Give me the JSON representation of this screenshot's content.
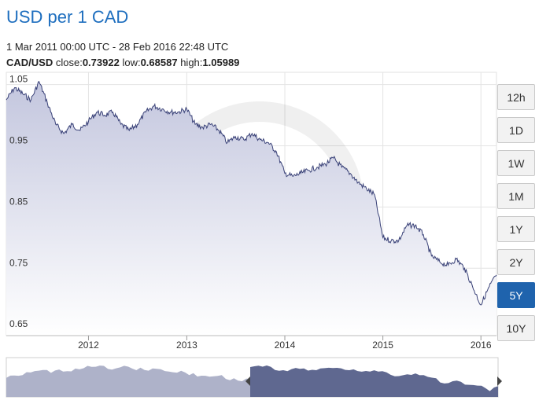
{
  "title": "USD per 1 CAD",
  "range_text": "1 Mar 2011 00:00 UTC - 28 Feb 2016 22:48 UTC",
  "stats": {
    "pair": "CAD/USD",
    "close_label": "close:",
    "close": "0.73922",
    "low_label": "low:",
    "low": "0.68587",
    "high_label": "high:",
    "high": "1.05989"
  },
  "buttons": [
    {
      "label": "12h",
      "active": false
    },
    {
      "label": "1D",
      "active": false
    },
    {
      "label": "1W",
      "active": false
    },
    {
      "label": "1M",
      "active": false
    },
    {
      "label": "1Y",
      "active": false
    },
    {
      "label": "2Y",
      "active": false
    },
    {
      "label": "5Y",
      "active": true
    },
    {
      "label": "10Y",
      "active": false
    }
  ],
  "colors": {
    "title": "#1f6fbf",
    "line": "#3a4278",
    "area_top": "#c3c6de",
    "area_bottom": "#ffffff",
    "navigator_unselected": "#aeb2c9",
    "navigator_selected": "#5f6890",
    "active_button": "#1f63ad"
  },
  "chart_data": {
    "type": "area",
    "title": "USD per 1 CAD",
    "x_tick_labels": [
      "2012",
      "2013",
      "2014",
      "2015",
      "2016"
    ],
    "y_tick_labels": [
      "1.05",
      "0.95",
      "0.85",
      "0.75",
      "0.65"
    ],
    "x_range": [
      "2011-03-01",
      "2016-02-28"
    ],
    "ylim": [
      0.64,
      1.07
    ],
    "grid": true,
    "series": [
      {
        "x": [
          "2011-03-01",
          "2011-04-01",
          "2011-05-01",
          "2011-06-01",
          "2011-07-01",
          "2011-08-01",
          "2011-09-01",
          "2011-10-01",
          "2011-11-01",
          "2011-12-01",
          "2012-01-01",
          "2012-02-01",
          "2012-03-01",
          "2012-04-01",
          "2012-05-01",
          "2012-06-01",
          "2012-07-01",
          "2012-08-01",
          "2012-09-01",
          "2012-10-01",
          "2012-11-01",
          "2012-12-01",
          "2013-01-01",
          "2013-02-01",
          "2013-03-01",
          "2013-04-01",
          "2013-05-01",
          "2013-06-01",
          "2013-07-01",
          "2013-08-01",
          "2013-09-01",
          "2013-10-01",
          "2013-11-01",
          "2013-12-01",
          "2014-01-01",
          "2014-02-01",
          "2014-03-01",
          "2014-04-01",
          "2014-05-01",
          "2014-06-01",
          "2014-07-01",
          "2014-08-01",
          "2014-09-01",
          "2014-10-01",
          "2014-11-01",
          "2014-12-01",
          "2015-01-01",
          "2015-02-01",
          "2015-03-01",
          "2015-04-01",
          "2015-05-01",
          "2015-06-01",
          "2015-07-01",
          "2015-08-01",
          "2015-09-01",
          "2015-10-01",
          "2015-11-01",
          "2015-12-01",
          "2016-01-01",
          "2016-02-01",
          "2016-02-28"
        ],
        "values": [
          1.025,
          1.045,
          1.035,
          1.025,
          1.055,
          1.02,
          0.985,
          0.97,
          0.985,
          0.975,
          0.99,
          1.005,
          1.0,
          1.005,
          0.985,
          0.975,
          0.985,
          1.005,
          1.015,
          1.01,
          1.005,
          1.005,
          1.01,
          0.985,
          0.98,
          0.985,
          0.975,
          0.955,
          0.965,
          0.96,
          0.97,
          0.96,
          0.955,
          0.94,
          0.905,
          0.9,
          0.905,
          0.91,
          0.915,
          0.92,
          0.93,
          0.915,
          0.905,
          0.89,
          0.88,
          0.87,
          0.8,
          0.795,
          0.795,
          0.82,
          0.82,
          0.805,
          0.77,
          0.76,
          0.755,
          0.765,
          0.75,
          0.72,
          0.69,
          0.72,
          0.739
        ]
      }
    ]
  }
}
